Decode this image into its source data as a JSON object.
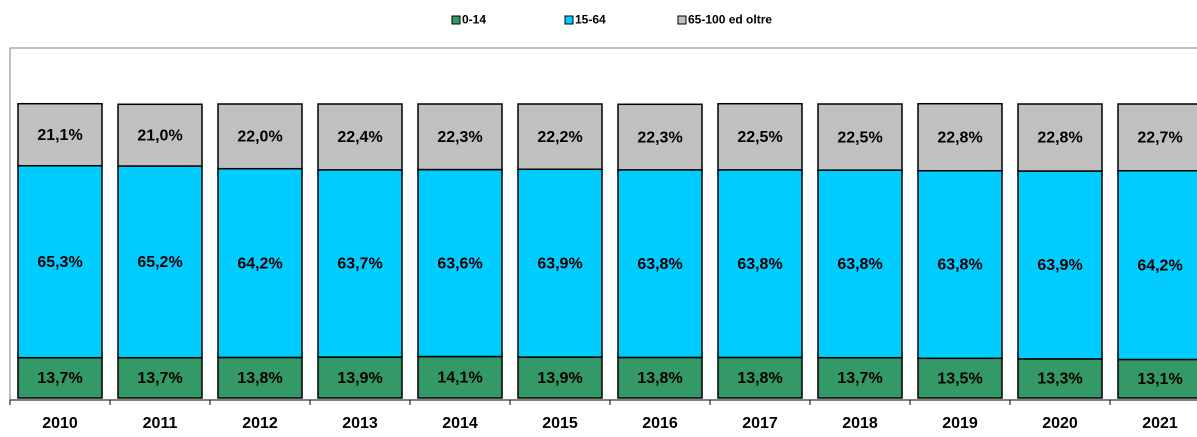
{
  "chart_data": {
    "type": "stacked_bar",
    "categories": [
      "2010",
      "2011",
      "2012",
      "2013",
      "2014",
      "2015",
      "2016",
      "2017",
      "2018",
      "2019",
      "2020",
      "2021"
    ],
    "series": [
      {
        "name": "0-14",
        "color": "#339966",
        "values": [
          13.7,
          13.7,
          13.8,
          13.9,
          14.1,
          13.9,
          13.8,
          13.8,
          13.7,
          13.5,
          13.3,
          13.1
        ],
        "value_labels": [
          "13,7%",
          "13,7%",
          "13,8%",
          "13,9%",
          "14,1%",
          "13,9%",
          "13,8%",
          "13,8%",
          "13,7%",
          "13,5%",
          "13,3%",
          "13,1%"
        ]
      },
      {
        "name": "15-64",
        "color": "#00ccff",
        "values": [
          65.3,
          65.2,
          64.2,
          63.7,
          63.6,
          63.9,
          63.8,
          63.8,
          63.8,
          63.8,
          63.9,
          64.2
        ],
        "value_labels": [
          "65,3%",
          "65,2%",
          "64,2%",
          "63,7%",
          "63,6%",
          "63,9%",
          "63,8%",
          "63,8%",
          "63,8%",
          "63,8%",
          "63,9%",
          "64,2%"
        ]
      },
      {
        "name": "65-100 ed oltre",
        "color": "#c0c0c0",
        "values": [
          21.1,
          21.0,
          22.0,
          22.4,
          22.3,
          22.2,
          22.3,
          22.5,
          22.5,
          22.8,
          22.8,
          22.7
        ],
        "value_labels": [
          "21,1%",
          "21,0%",
          "22,0%",
          "22,4%",
          "22,3%",
          "22,2%",
          "22,3%",
          "22,5%",
          "22,5%",
          "22,8%",
          "22,8%",
          "22,7%"
        ]
      }
    ],
    "legend": "top"
  }
}
